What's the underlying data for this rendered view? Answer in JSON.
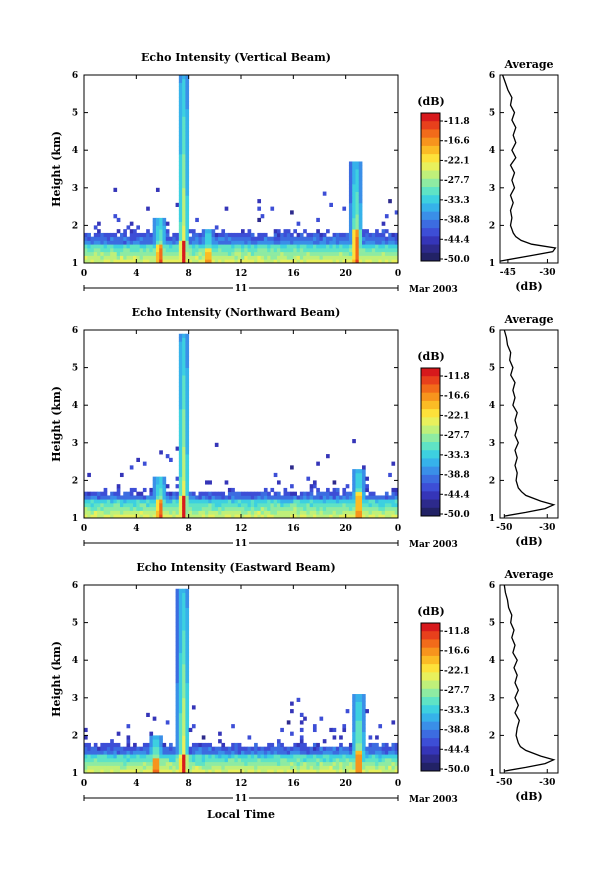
{
  "chart_data": {
    "type": "heatmap",
    "colorbar": {
      "unit_label": "(dB)",
      "tick_labels": [
        "-11.8",
        "-16.6",
        "-22.1",
        "-27.7",
        "-33.3",
        "-38.8",
        "-44.4",
        "-50.0"
      ],
      "colors": [
        "#d7191c",
        "#e8401c",
        "#f26b1a",
        "#f7941d",
        "#fbbc25",
        "#fde13a",
        "#e8f05c",
        "#bff07a",
        "#8eeba2",
        "#5fe3c5",
        "#3dd0e0",
        "#36b2ea",
        "#3a8fe8",
        "#3c6ce0",
        "#3d4ed6",
        "#3535b8",
        "#2d2a8c",
        "#222266"
      ]
    },
    "panels": [
      {
        "title": "Echo Intensity (Vertical Beam)",
        "ylabel": "Height (km)",
        "yticks": [
          "1",
          "2",
          "3",
          "4",
          "5",
          "6"
        ],
        "ylim": [
          1,
          6
        ],
        "xticks": [
          "0",
          "4",
          "8",
          "12",
          "16",
          "20",
          "0"
        ],
        "xlim": [
          0,
          24
        ],
        "day_label": "11",
        "date_label": "Mar 2003",
        "clutter_level": 1.75,
        "features": [
          {
            "t": 5.8,
            "top": 2.2,
            "peak": 1.5,
            "w": 0.5
          },
          {
            "t": 7.6,
            "top": 5.9,
            "peak": 1.6,
            "w": 0.45
          },
          {
            "t": 20.8,
            "top": 3.7,
            "peak": 1.9,
            "w": 0.45
          },
          {
            "t": 9.5,
            "top": 1.9,
            "peak": 1.4,
            "w": 0.4
          }
        ],
        "average": {
          "title": "Average",
          "xlabel": "(dB)",
          "xticks": [
            "-45",
            "-30"
          ],
          "xlim": [
            -48,
            -26
          ],
          "height": [
            1.05,
            1.2,
            1.3,
            1.4,
            1.5,
            1.6,
            1.7,
            1.8,
            1.9,
            2.0,
            2.2,
            2.4,
            2.6,
            2.8,
            3.0,
            3.2,
            3.4,
            3.6,
            3.8,
            4.0,
            4.2,
            4.4,
            4.6,
            4.8,
            5.0,
            5.2,
            5.4,
            5.6,
            5.8,
            6.0
          ],
          "db": [
            -48,
            -36,
            -28,
            -27,
            -36,
            -40,
            -42,
            -43,
            -43.5,
            -44,
            -43.5,
            -44,
            -43,
            -44,
            -42.5,
            -43.5,
            -42.5,
            -44,
            -42,
            -43.5,
            -42,
            -43,
            -42,
            -43.5,
            -42.5,
            -44,
            -43.5,
            -45,
            -46,
            -47
          ]
        }
      },
      {
        "title": "Echo Intensity (Northward Beam)",
        "ylabel": "Height (km)",
        "yticks": [
          "1",
          "2",
          "3",
          "4",
          "5",
          "6"
        ],
        "ylim": [
          1,
          6
        ],
        "xticks": [
          "0",
          "4",
          "8",
          "12",
          "16",
          "20",
          "0"
        ],
        "xlim": [
          0,
          24
        ],
        "day_label": "11",
        "date_label": "Mar 2003",
        "clutter_level": 1.65,
        "features": [
          {
            "t": 5.8,
            "top": 2.1,
            "peak": 1.5,
            "w": 0.5
          },
          {
            "t": 7.6,
            "top": 5.8,
            "peak": 1.6,
            "w": 0.45
          },
          {
            "t": 21.0,
            "top": 2.3,
            "peak": 1.7,
            "w": 0.45
          }
        ],
        "average": {
          "title": "Average",
          "xlabel": "(dB)",
          "xticks": [
            "-50",
            "-30"
          ],
          "xlim": [
            -52,
            -25
          ],
          "height": [
            1.05,
            1.15,
            1.25,
            1.35,
            1.45,
            1.6,
            1.7,
            1.8,
            1.9,
            2.0,
            2.2,
            2.4,
            2.6,
            2.8,
            3.0,
            3.2,
            3.4,
            3.6,
            3.8,
            4.0,
            4.2,
            4.4,
            4.6,
            4.8,
            5.0,
            5.2,
            5.4,
            5.6,
            5.8,
            6.0
          ],
          "db": [
            -50,
            -40,
            -31,
            -27,
            -33,
            -40,
            -42,
            -43.5,
            -44,
            -44.5,
            -44,
            -45,
            -44,
            -45,
            -43.5,
            -45,
            -44,
            -45,
            -44,
            -46,
            -45,
            -46,
            -45,
            -47,
            -46,
            -47.5,
            -47,
            -48.5,
            -49,
            -50
          ]
        }
      },
      {
        "title": "Echo Intensity (Eastward Beam)",
        "ylabel": "Height (km)",
        "yticks": [
          "1",
          "2",
          "3",
          "4",
          "5",
          "6"
        ],
        "ylim": [
          1,
          6
        ],
        "xticks": [
          "0",
          "4",
          "8",
          "12",
          "16",
          "20",
          "0"
        ],
        "xlim": [
          0,
          24
        ],
        "day_label": "11",
        "date_label": "Mar 2003",
        "xlabel": "Local Time",
        "clutter_level": 1.7,
        "features": [
          {
            "t": 5.5,
            "top": 2.0,
            "peak": 1.4,
            "w": 0.55
          },
          {
            "t": 7.6,
            "top": 5.8,
            "peak": 1.5,
            "w": 0.5
          },
          {
            "t": 21.0,
            "top": 3.1,
            "peak": 1.6,
            "w": 0.5
          }
        ],
        "average": {
          "title": "Average",
          "xlabel": "(dB)",
          "xticks": [
            "-50",
            "-30"
          ],
          "xlim": [
            -52,
            -25
          ],
          "height": [
            1.05,
            1.15,
            1.25,
            1.35,
            1.45,
            1.6,
            1.7,
            1.8,
            1.9,
            2.0,
            2.2,
            2.4,
            2.6,
            2.8,
            3.0,
            3.2,
            3.4,
            3.6,
            3.8,
            4.0,
            4.2,
            4.4,
            4.6,
            4.8,
            5.0,
            5.2,
            5.4,
            5.6,
            5.8,
            6.0
          ],
          "db": [
            -50,
            -40,
            -31,
            -27,
            -33,
            -40,
            -42.5,
            -43.5,
            -44,
            -44.5,
            -44,
            -43,
            -45,
            -43.5,
            -45,
            -43.5,
            -45,
            -44,
            -45.5,
            -44,
            -46,
            -45,
            -46.5,
            -45.5,
            -47,
            -46.5,
            -48,
            -48.5,
            -49.5,
            -50
          ]
        }
      }
    ]
  }
}
